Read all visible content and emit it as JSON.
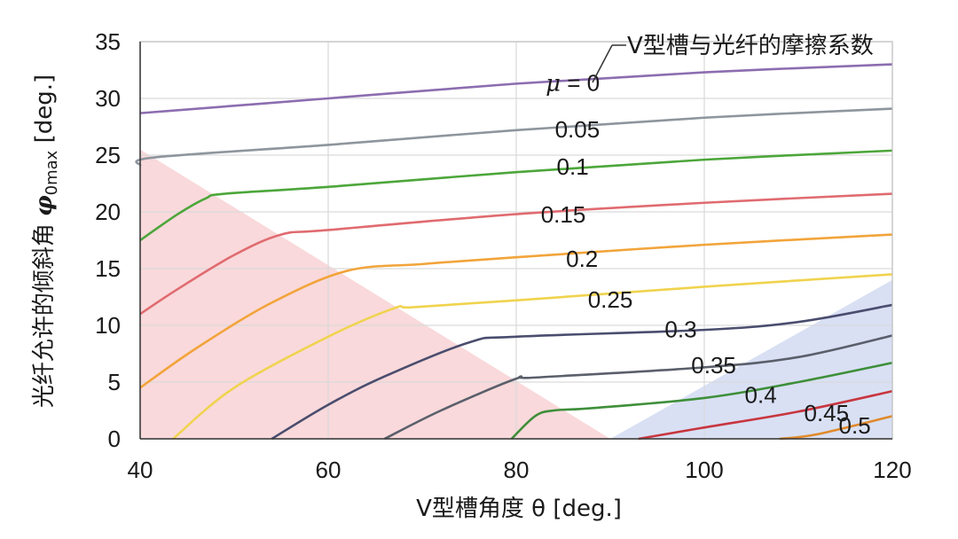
{
  "chart_data": {
    "type": "line",
    "xlabel": "V型槽角度 θ [deg.]",
    "ylabel": "光纤允许的倾斜角 φ0max [deg.]",
    "ylabel_main": "光纤允许的倾斜角 ",
    "ylabel_symbol": "φ",
    "ylabel_sub": "0max",
    "ylabel_unit": " [deg.]",
    "legend_title": "V型槽与光纤的摩擦系数",
    "xlim": [
      40,
      120
    ],
    "ylim": [
      0,
      35
    ],
    "x_ticks": [
      "40",
      "60",
      "80",
      "100",
      "120"
    ],
    "y_ticks": [
      "0",
      "5",
      "10",
      "15",
      "20",
      "25",
      "30",
      "35"
    ],
    "grid": true,
    "shaded_regions": [
      {
        "color": "#f6c9cc",
        "points": [
          [
            40,
            25.5
          ],
          [
            90,
            0
          ],
          [
            40,
            0
          ]
        ]
      },
      {
        "color": "#c9d3ef",
        "points": [
          [
            90,
            0
          ],
          [
            120,
            14
          ],
          [
            120,
            0
          ]
        ]
      }
    ],
    "series": [
      {
        "name": "μ = 0",
        "color": "#8c6db0",
        "points": [
          [
            40,
            28.7
          ],
          [
            60,
            30.0
          ],
          [
            80,
            31.3
          ],
          [
            100,
            32.3
          ],
          [
            120,
            33.0
          ]
        ]
      },
      {
        "name": "0.05",
        "color": "#8e959d",
        "points": [
          [
            40,
            24.1
          ],
          [
            41.5,
            24.8
          ],
          [
            60,
            25.9
          ],
          [
            80,
            27.2
          ],
          [
            100,
            28.3
          ],
          [
            120,
            29.1
          ]
        ]
      },
      {
        "name": "0.1",
        "color": "#4ca63a",
        "points": [
          [
            40,
            17.5
          ],
          [
            44,
            19.8
          ],
          [
            47,
            21.2
          ],
          [
            49,
            21.6
          ],
          [
            60,
            22.2
          ],
          [
            80,
            23.5
          ],
          [
            100,
            24.6
          ],
          [
            120,
            25.4
          ]
        ]
      },
      {
        "name": "0.15",
        "color": "#e06b70",
        "points": [
          [
            40,
            11.0
          ],
          [
            44,
            13.2
          ],
          [
            50,
            16.2
          ],
          [
            55,
            18.0
          ],
          [
            60,
            18.4
          ],
          [
            80,
            19.8
          ],
          [
            100,
            20.8
          ],
          [
            120,
            21.6
          ]
        ]
      },
      {
        "name": "0.2",
        "color": "#f2a43a",
        "points": [
          [
            40,
            4.5
          ],
          [
            46,
            8.0
          ],
          [
            54,
            12.0
          ],
          [
            62,
            14.8
          ],
          [
            70,
            15.4
          ],
          [
            80,
            16.0
          ],
          [
            100,
            17.1
          ],
          [
            120,
            18.0
          ]
        ]
      },
      {
        "name": "0.25",
        "color": "#f0d34e",
        "points": [
          [
            43.5,
            0
          ],
          [
            50,
            4.5
          ],
          [
            60,
            9.0
          ],
          [
            67,
            11.5
          ],
          [
            69,
            11.6
          ],
          [
            80,
            12.2
          ],
          [
            100,
            13.4
          ],
          [
            120,
            14.5
          ]
        ]
      },
      {
        "name": "0.3",
        "color": "#4a4d6e",
        "points": [
          [
            54,
            0
          ],
          [
            60,
            3.0
          ],
          [
            66,
            5.5
          ],
          [
            75,
            8.5
          ],
          [
            80,
            9.0
          ],
          [
            100,
            9.6
          ],
          [
            110,
            10.3
          ],
          [
            120,
            11.8
          ]
        ]
      },
      {
        "name": "0.35",
        "color": "#5a5f6b",
        "points": [
          [
            66,
            0
          ],
          [
            72,
            2.5
          ],
          [
            80,
            5.3
          ],
          [
            82,
            5.4
          ],
          [
            100,
            6.3
          ],
          [
            110,
            7.2
          ],
          [
            120,
            9.1
          ]
        ]
      },
      {
        "name": "0.4",
        "color": "#3e8f3a",
        "points": [
          [
            79.5,
            0
          ],
          [
            82,
            2.0
          ],
          [
            84,
            2.5
          ],
          [
            88,
            2.7
          ],
          [
            100,
            3.6
          ],
          [
            110,
            5.0
          ],
          [
            120,
            6.7
          ]
        ]
      },
      {
        "name": "0.45",
        "color": "#c8363f",
        "points": [
          [
            93,
            0
          ],
          [
            100,
            1.0
          ],
          [
            110,
            2.4
          ],
          [
            120,
            4.2
          ]
        ]
      },
      {
        "name": "0.5",
        "color": "#e08a2a",
        "points": [
          [
            108,
            0
          ],
          [
            112,
            0.4
          ],
          [
            120,
            2.0
          ]
        ]
      }
    ],
    "curve_labels": [
      {
        "text": "μ = 0",
        "x": 86,
        "y": 31.2,
        "italic_mu": true
      },
      {
        "text": "0.05",
        "x": 86.5,
        "y": 27.1
      },
      {
        "text": "0.1",
        "x": 86,
        "y": 23.8
      },
      {
        "text": "0.15",
        "x": 85,
        "y": 19.6
      },
      {
        "text": "0.2",
        "x": 87,
        "y": 15.7
      },
      {
        "text": "0.25",
        "x": 90,
        "y": 12.1
      },
      {
        "text": "0.3",
        "x": 97.5,
        "y": 9.5
      },
      {
        "text": "0.35",
        "x": 101,
        "y": 6.3
      },
      {
        "text": "0.4",
        "x": 106,
        "y": 3.7
      },
      {
        "text": "0.45",
        "x": 113,
        "y": 2.1
      },
      {
        "text": "0.5",
        "x": 116,
        "y": 1.0
      }
    ]
  }
}
